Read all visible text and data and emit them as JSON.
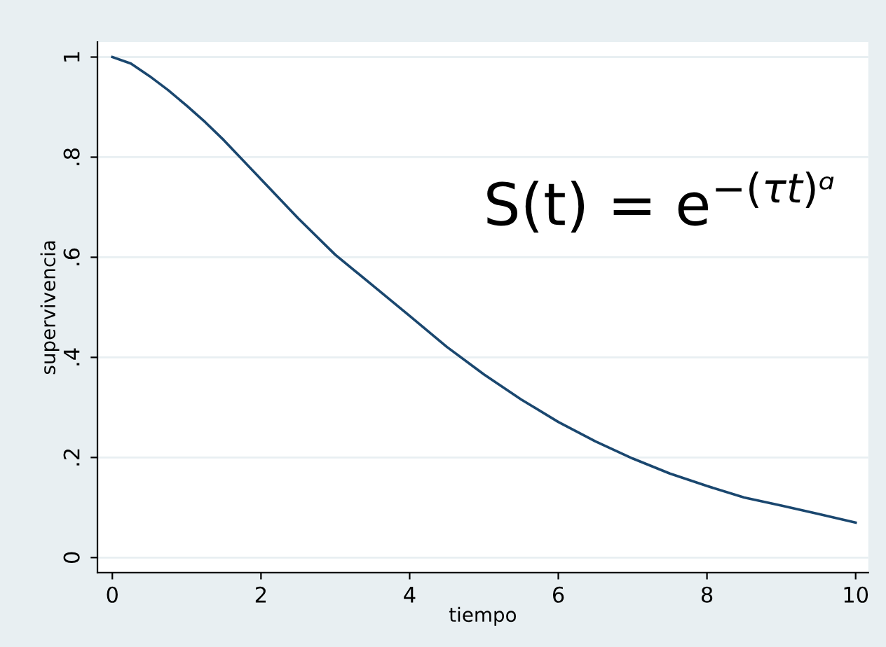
{
  "chart_data": {
    "type": "line",
    "xlabel": "tiempo",
    "ylabel": "supervivencia",
    "x": [
      0,
      0.25,
      0.5,
      0.75,
      1,
      1.25,
      1.5,
      2,
      2.5,
      3,
      3.5,
      4,
      4.5,
      5,
      5.5,
      6,
      6.5,
      7,
      7.5,
      8,
      8.5,
      9,
      9.5,
      10
    ],
    "series": [
      {
        "color": "#1a476f",
        "values": [
          1.0,
          0.987,
          0.962,
          0.934,
          0.903,
          0.87,
          0.834,
          0.756,
          0.678,
          0.605,
          0.544,
          0.483,
          0.421,
          0.366,
          0.316,
          0.271,
          0.232,
          0.198,
          0.168,
          0.143,
          0.12,
          0.104,
          0.087,
          0.07
        ]
      }
    ],
    "xlim": [
      -0.2,
      10.17
    ],
    "xticks": [
      0,
      2,
      4,
      6,
      8,
      10
    ],
    "ylim": [
      -0.03,
      1.03
    ],
    "yticks": [
      0,
      {
        "value": 0.2,
        "label": ".2"
      },
      {
        "value": 0.4,
        "label": ".4"
      },
      {
        "value": 0.6,
        "label": ".6"
      },
      {
        "value": 0.8,
        "label": ".8"
      },
      1
    ],
    "grid": "y",
    "legend": false,
    "marker": "none",
    "line_style": "solid",
    "annotations": [
      "S(t) = e$^{−(τt)ᵅ}$"
    ]
  }
}
